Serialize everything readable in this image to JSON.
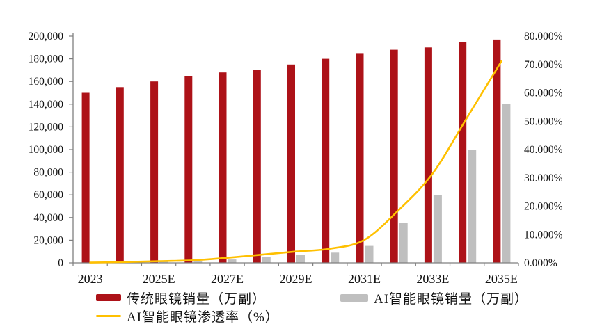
{
  "figure": {
    "background": "#FFFFFF",
    "axis_line_color": "#7F7F7F",
    "text_color": "#111111"
  },
  "chart_data": {
    "type": "bar",
    "combo": "dual-axis bar + smooth line",
    "title": "",
    "xlabel": "",
    "ylabel_left": "",
    "ylabel_right": "",
    "grid": "off",
    "legend_position": "bottom",
    "categories": [
      "2023",
      "2024E",
      "2025E",
      "2026E",
      "2027E",
      "2028E",
      "2029E",
      "2030E",
      "2031E",
      "2032E",
      "2033E",
      "2034E",
      "2035E"
    ],
    "x_tick_labels_shown": [
      "2023",
      "2025E",
      "2027E",
      "2029E",
      "2031E",
      "2033E",
      "2035E"
    ],
    "x_tick_label_indices": [
      0,
      2,
      4,
      6,
      8,
      10,
      12
    ],
    "series": [
      {
        "name": "传统眼镜销量（万副）",
        "type": "bar",
        "axis": "left",
        "color": "#AD1218",
        "values": [
          150000,
          155000,
          160000,
          165000,
          168000,
          170000,
          175000,
          180000,
          185000,
          188000,
          190000,
          195000,
          197000
        ]
      },
      {
        "name": "AI智能眼镜销量（万副）",
        "type": "bar",
        "axis": "left",
        "color": "#BFBFBF",
        "values": [
          200,
          500,
          1000,
          1500,
          3000,
          5000,
          7000,
          9000,
          15000,
          35000,
          60000,
          100000,
          140000
        ]
      },
      {
        "name": "AI智能眼镜渗透率（%）",
        "type": "line",
        "axis": "right",
        "color": "#FFC000",
        "values_percent": [
          0.1,
          0.3,
          0.6,
          0.9,
          1.8,
          2.9,
          4.0,
          5.0,
          8.1,
          18.6,
          31.6,
          51.3,
          71.1
        ]
      }
    ],
    "left_axis": {
      "min": 0,
      "max": 200000,
      "tick_interval": 20000,
      "tick_labels": [
        "0",
        "20,000",
        "40,000",
        "60,000",
        "80,000",
        "100,000",
        "120,000",
        "140,000",
        "160,000",
        "180,000",
        "200,000"
      ]
    },
    "right_axis": {
      "min": 0,
      "max": 80,
      "tick_interval": 10,
      "tick_labels": [
        "0.000%",
        "10.000%",
        "20.000%",
        "30.000%",
        "40.000%",
        "50.000%",
        "60.000%",
        "70.000%",
        "80.000%"
      ]
    }
  }
}
